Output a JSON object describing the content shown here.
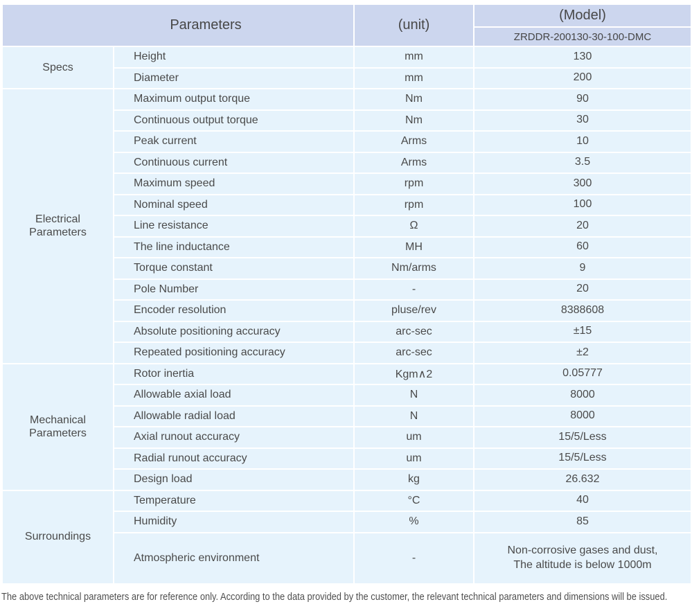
{
  "colors": {
    "header_bg": "#ccd6ee",
    "row_bg": "#e6f3fc",
    "divider": "#ffffff",
    "text": "#4a4a4a"
  },
  "table": {
    "header": {
      "parameters_label": "Parameters",
      "unit_label": "(unit)",
      "model_label": "(Model)",
      "model_value": "ZRDDR-200130-30-100-DMC"
    },
    "sections": [
      {
        "name": "Specs",
        "rows": [
          {
            "param": "Height",
            "unit": "mm",
            "value": "130"
          },
          {
            "param": "Diameter",
            "unit": "mm",
            "value": "200"
          }
        ]
      },
      {
        "name": "Electrical Parameters",
        "rows": [
          {
            "param": "Maximum output torque",
            "unit": "Nm",
            "value": "90"
          },
          {
            "param": "Continuous output torque",
            "unit": "Nm",
            "value": "30"
          },
          {
            "param": "Peak current",
            "unit": "Arms",
            "value": "10"
          },
          {
            "param": "Continuous current",
            "unit": "Arms",
            "value": "3.5"
          },
          {
            "param": "Maximum speed",
            "unit": "rpm",
            "value": "300"
          },
          {
            "param": "Nominal speed",
            "unit": "rpm",
            "value": "100"
          },
          {
            "param": "Line resistance",
            "unit": "Ω",
            "value": "20"
          },
          {
            "param": "The line inductance",
            "unit": "MH",
            "value": "60"
          },
          {
            "param": "Torque constant",
            "unit": "Nm/arms",
            "value": "9"
          },
          {
            "param": "Pole Number",
            "unit": "-",
            "value": "20"
          },
          {
            "param": "Encoder resolution",
            "unit": "pluse/rev",
            "value": "8388608"
          },
          {
            "param": "Absolute positioning accuracy",
            "unit": "arc-sec",
            "value": "±15"
          },
          {
            "param": "Repeated positioning accuracy",
            "unit": "arc-sec",
            "value": "±2"
          }
        ]
      },
      {
        "name": "Mechanical Parameters",
        "rows": [
          {
            "param": "Rotor inertia",
            "unit": "Kgm∧2",
            "value": "0.05777"
          },
          {
            "param": "Allowable axial load",
            "unit": "N",
            "value": "8000"
          },
          {
            "param": "Allowable radial load",
            "unit": "N",
            "value": "8000"
          },
          {
            "param": "Axial runout accuracy",
            "unit": "um",
            "value": "15/5/Less"
          },
          {
            "param": "Radial runout accuracy",
            "unit": "um",
            "value": "15/5/Less"
          },
          {
            "param": "Design load",
            "unit": "kg",
            "value": "26.632"
          }
        ]
      },
      {
        "name": "Surroundings",
        "rows": [
          {
            "param": "Temperature",
            "unit": "°C",
            "value": "40"
          },
          {
            "param": "Humidity",
            "unit": "%",
            "value": "85"
          },
          {
            "param": "Atmospheric environment",
            "unit": "-",
            "value": "Non-corrosive gases and dust,\nThe altitude is below 1000m",
            "tall": true
          }
        ]
      }
    ]
  },
  "footer": {
    "note": "The above technical parameters are for reference only. According to the data provided by the customer, the relevant technical parameters and dimensions will be issued."
  }
}
